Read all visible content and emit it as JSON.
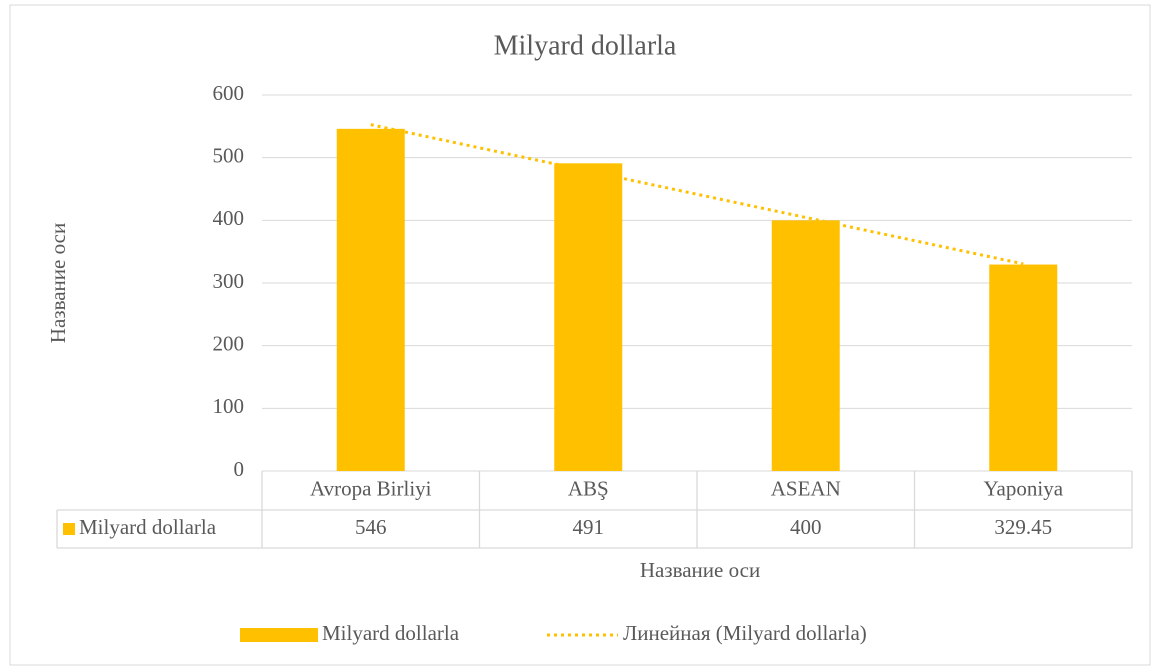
{
  "chart_data": {
    "type": "bar",
    "title": "Milyard dollarla",
    "x_label": "Название оси",
    "y_label": "Название оси",
    "categories": [
      "Avropa Birliyi",
      "ABŞ",
      "ASEAN",
      "Yaponiya"
    ],
    "series": [
      {
        "name": "Milyard dollarla",
        "color": "#ffc000",
        "values": [
          546,
          491,
          400,
          329.45
        ]
      }
    ],
    "trendline": {
      "name": "Линейная (Milyard dollarla)",
      "color": "#ffc000"
    },
    "ylim": [
      0,
      600
    ],
    "yticks": [
      0,
      100,
      200,
      300,
      400,
      500,
      600
    ],
    "grid": true,
    "legend": "bottom",
    "data_table": true
  }
}
